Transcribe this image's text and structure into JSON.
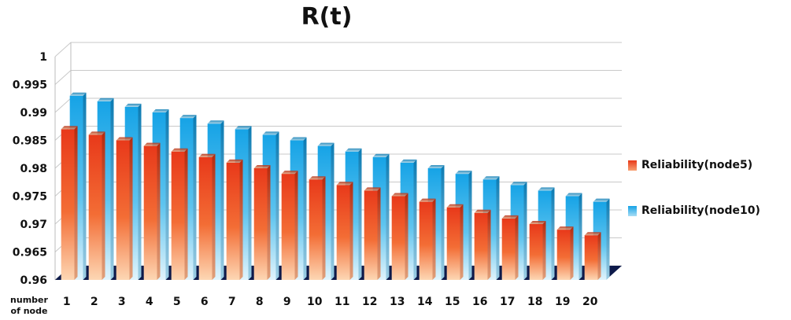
{
  "chart_data": {
    "type": "bar",
    "title": "R(t)",
    "xlabel": "number of node",
    "ylabel": "",
    "ylim": [
      0.96,
      1
    ],
    "yticks": [
      "0.96",
      "0.965",
      "0.97",
      "0.975",
      "0.98",
      "0.985",
      "0.99",
      "0.995",
      "1"
    ],
    "categories": [
      "1",
      "2",
      "3",
      "4",
      "5",
      "6",
      "7",
      "8",
      "9",
      "10",
      "11",
      "12",
      "13",
      "14",
      "15",
      "16",
      "17",
      "18",
      "19",
      "20"
    ],
    "grid": true,
    "legend_position": "right",
    "series": [
      {
        "name": "Reliability(node5)",
        "color": "#e8441a",
        "values": [
          0.987,
          0.986,
          0.985,
          0.984,
          0.983,
          0.982,
          0.981,
          0.98,
          0.979,
          0.978,
          0.977,
          0.976,
          0.975,
          0.974,
          0.973,
          0.972,
          0.971,
          0.97,
          0.969,
          0.968
        ]
      },
      {
        "name": "Reliability(node10)",
        "color": "#19a8e6",
        "values": [
          0.993,
          0.992,
          0.991,
          0.99,
          0.989,
          0.988,
          0.987,
          0.986,
          0.985,
          0.984,
          0.983,
          0.982,
          0.981,
          0.98,
          0.979,
          0.978,
          0.977,
          0.976,
          0.975,
          0.974
        ]
      }
    ]
  }
}
